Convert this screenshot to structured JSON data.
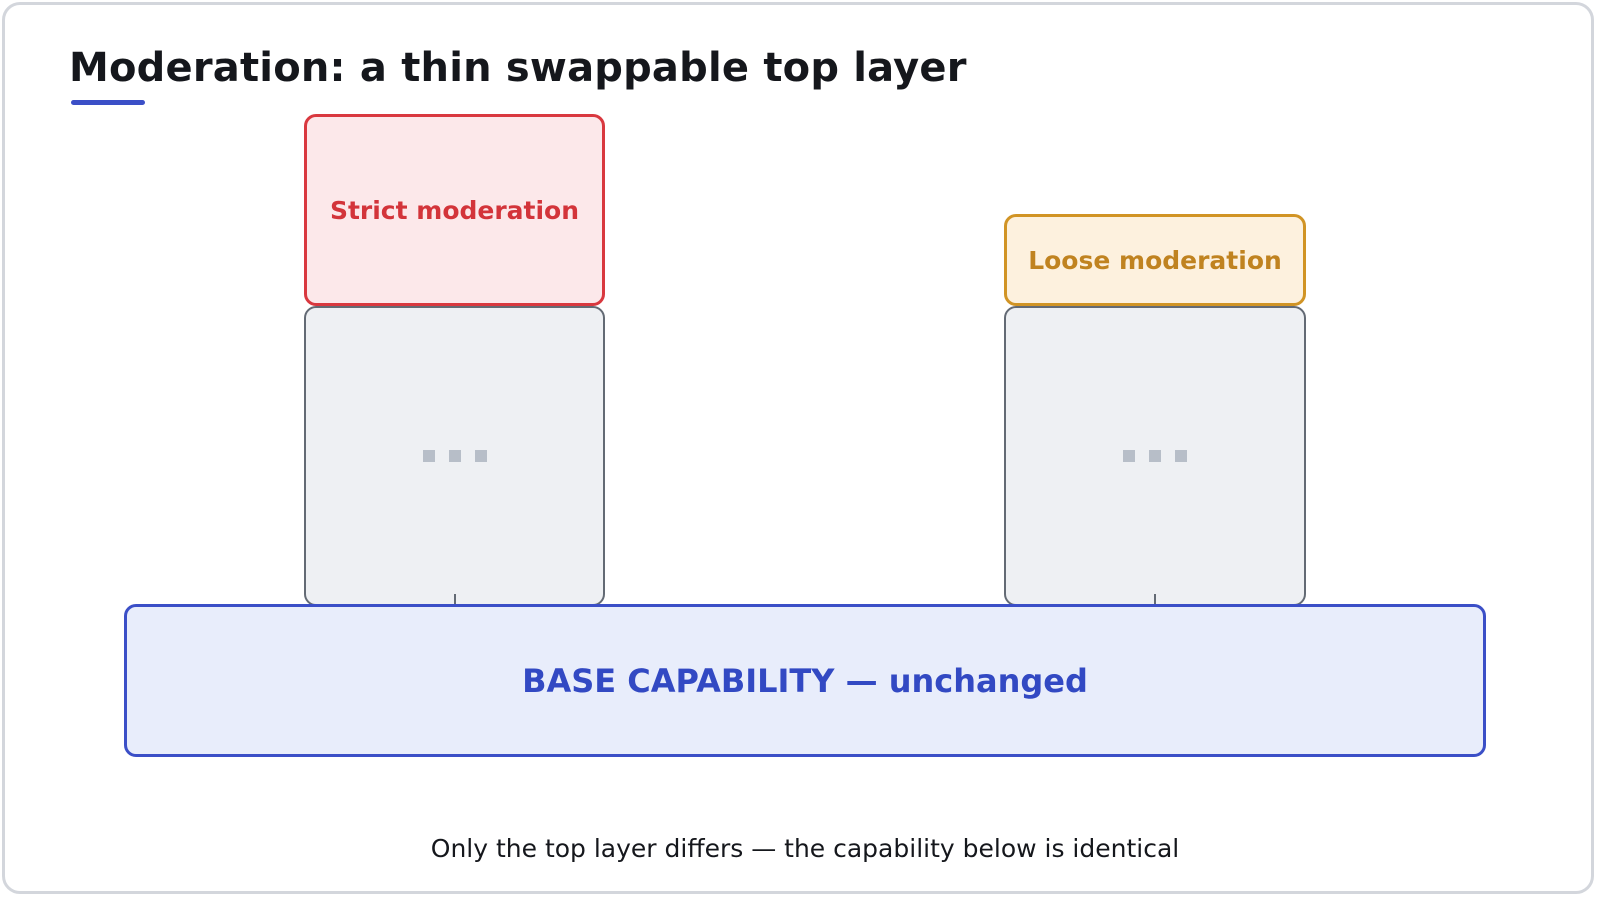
{
  "title": "Moderation: a thin swappable top layer",
  "accent_color": "#3b4fc7",
  "layers": {
    "strict_top": {
      "label": "Strict moderation",
      "color": "#d9383f"
    },
    "loose_top": {
      "label": "Loose moderation",
      "color": "#d19425"
    },
    "hidden_layers_glyph": "dots"
  },
  "base": {
    "label": "BASE CAPABILITY — unchanged",
    "color": "#3b4fc7"
  },
  "caption": "Only the top layer differs — the capability below is identical"
}
